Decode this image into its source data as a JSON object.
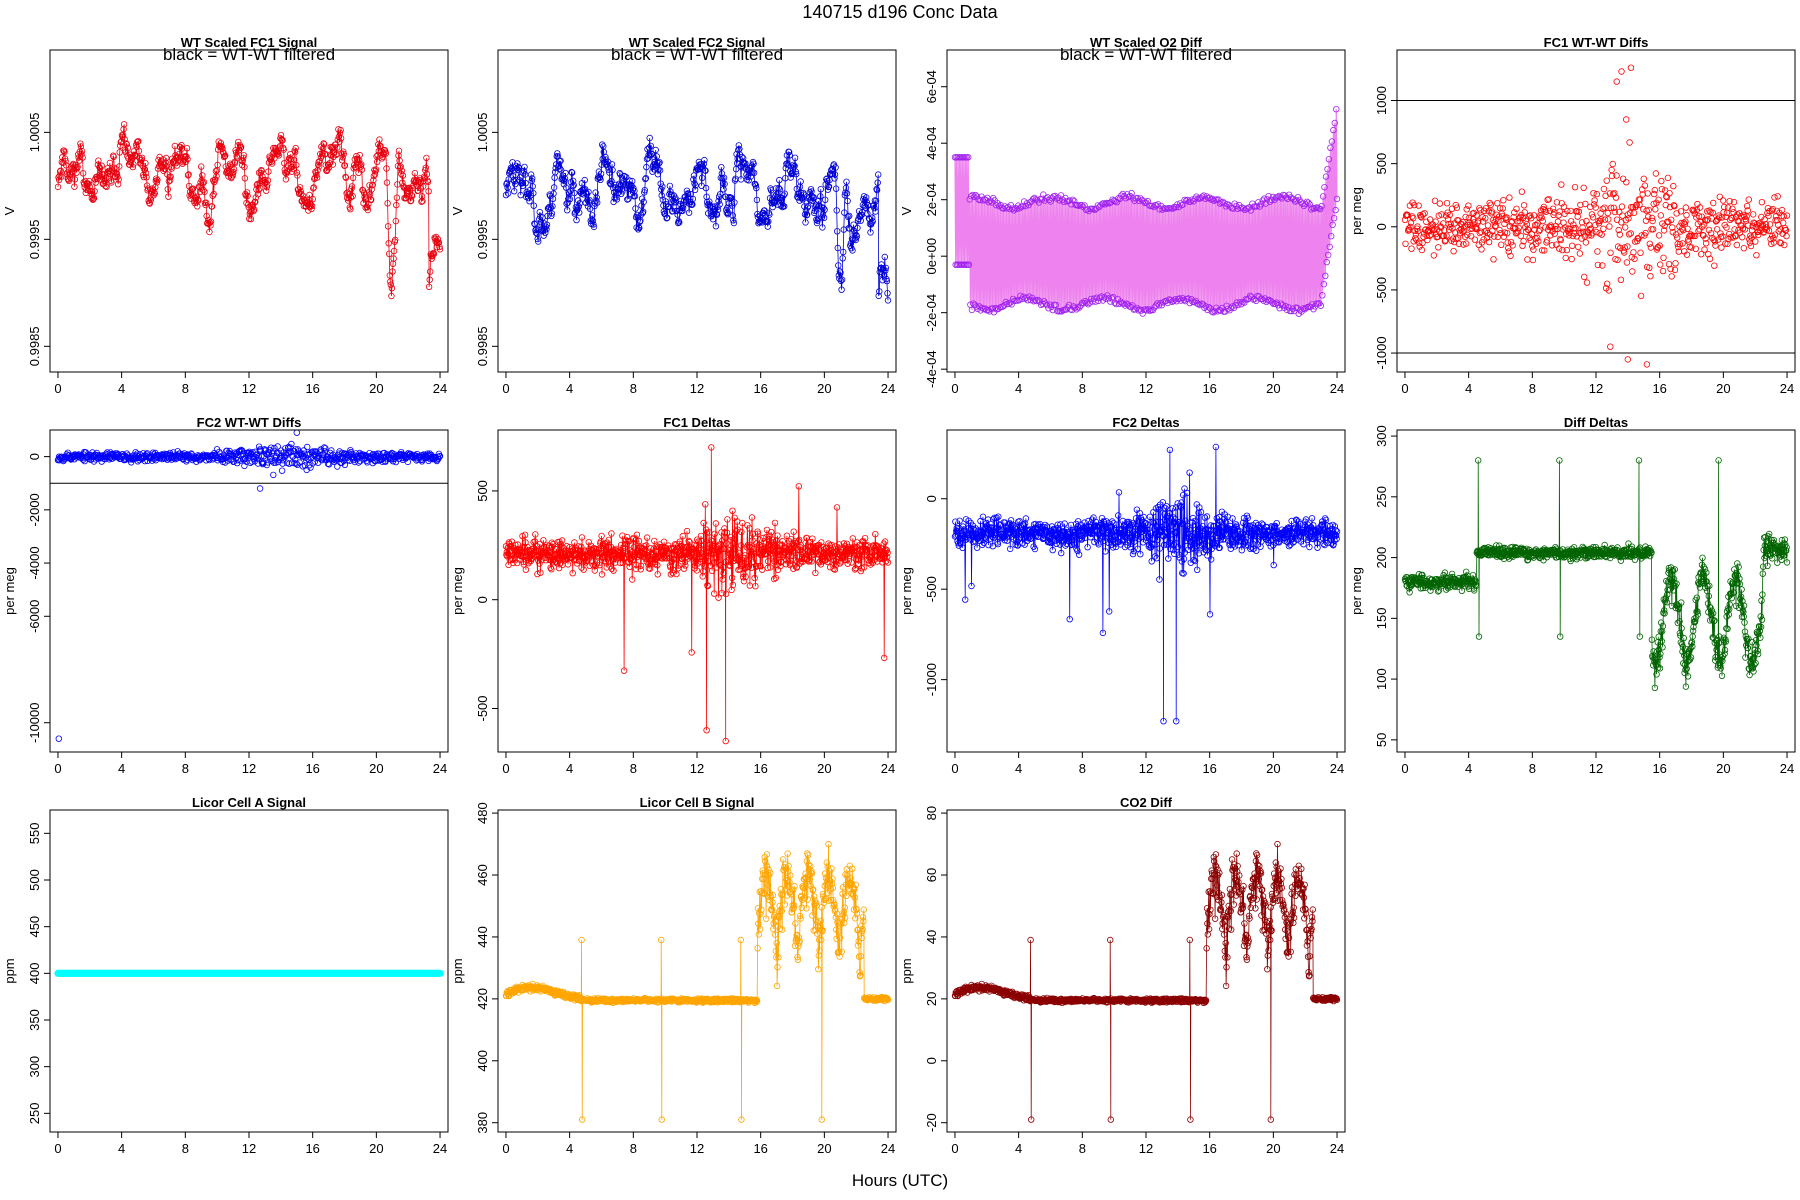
{
  "page": {
    "title": "140715    d196    Conc Data",
    "x_caption": "Hours (UTC)"
  },
  "chart_data": [
    {
      "id": "p1",
      "type": "scatter",
      "title": "WT Scaled FC1 Signal",
      "note": "black = WT-WT filtered",
      "ylabel": "V",
      "xlim": [
        -0.5,
        24.5
      ],
      "ylim": [
        0.99826,
        1.00127
      ],
      "xticks": [
        0,
        4,
        8,
        12,
        16,
        20,
        24
      ],
      "yticks": [
        0.9985,
        0.9995,
        1.0005
      ],
      "ytick_labels": [
        "0.9985",
        "0.9995",
        "1.0005"
      ],
      "color": "#e8000f",
      "series": [
        {
          "gen": "volt1",
          "base": 1.0001,
          "amp": 0.00036,
          "seed": 11
        }
      ]
    },
    {
      "id": "p2",
      "type": "scatter",
      "title": "WT Scaled FC2 Signal",
      "note": "black = WT-WT filtered",
      "ylabel": "V",
      "xlim": [
        -0.5,
        24.5
      ],
      "ylim": [
        0.99826,
        1.00127
      ],
      "xticks": [
        0,
        4,
        8,
        12,
        16,
        20,
        24
      ],
      "yticks": [
        0.9985,
        0.9995,
        1.0005
      ],
      "ytick_labels": [
        "0.9985",
        "0.9995",
        "1.0005"
      ],
      "color": "#0000d6",
      "series": [
        {
          "gen": "volt2",
          "base": 0.99995,
          "amp": 0.00038,
          "seed": 23
        }
      ]
    },
    {
      "id": "p3",
      "type": "scatter",
      "title": "WT Scaled O2 Diff",
      "note": "black = WT-WT filtered",
      "ylabel": "V",
      "xlim": [
        -0.5,
        24.5
      ],
      "ylim": [
        -0.00041,
        0.00073
      ],
      "xticks": [
        0,
        4,
        8,
        12,
        16,
        20,
        24
      ],
      "yticks": [
        -0.0004,
        -0.0002,
        0,
        0.0002,
        0.0004,
        0.0006
      ],
      "ytick_labels": [
        "-4e-04",
        "-2e-04",
        "0e+00",
        "2e-04",
        "4e-04",
        "6e-04"
      ],
      "color": "#a020f0",
      "series": [
        {
          "gen": "o2",
          "seed": 37
        }
      ]
    },
    {
      "id": "p4",
      "type": "scatter",
      "title": "FC1 WT-WT Diffs",
      "ylabel": "per meg",
      "xlim": [
        -0.5,
        24.5
      ],
      "ylim": [
        -1150,
        1400
      ],
      "xticks": [
        0,
        4,
        8,
        12,
        16,
        20,
        24
      ],
      "yticks": [
        -1000,
        -500,
        0,
        500,
        1000
      ],
      "ytick_labels": [
        "-1000",
        "-500",
        "0",
        "500",
        "1000"
      ],
      "hlines": [
        1000,
        -1000
      ],
      "color": "#ff0000",
      "series": [
        {
          "gen": "wtdiff",
          "seed": 41,
          "spread": 140
        }
      ]
    },
    {
      "id": "p5",
      "type": "scatter",
      "title": "FC2 WT-WT Diffs",
      "ylabel": "per meg",
      "xlim": [
        -0.5,
        24.5
      ],
      "ylim": [
        -11100,
        1000
      ],
      "xticks": [
        0,
        4,
        8,
        12,
        16,
        20,
        24
      ],
      "yticks": [
        -10000,
        -6000,
        -4000,
        -2000,
        0
      ],
      "ytick_labels": [
        "-10000",
        "-6000",
        "-4000",
        "-2000",
        "0"
      ],
      "hlines": [
        1000,
        -1000
      ],
      "color": "#0000ff",
      "series": [
        {
          "gen": "wtdiff2",
          "seed": 53,
          "spread": 110
        }
      ]
    },
    {
      "id": "p6",
      "type": "line",
      "title": "FC1 Deltas",
      "ylabel": "per meg",
      "xlim": [
        -0.5,
        24.5
      ],
      "ylim": [
        -700,
        780
      ],
      "xticks": [
        0,
        4,
        8,
        12,
        16,
        20,
        24
      ],
      "yticks": [
        -500,
        0,
        500
      ],
      "ytick_labels": [
        "-500",
        "0",
        "500"
      ],
      "color": "#ff0000",
      "series": [
        {
          "gen": "delta",
          "base": 210,
          "amp": 70,
          "seed": 61
        }
      ]
    },
    {
      "id": "p7",
      "type": "line",
      "title": "FC2 Deltas",
      "ylabel": "per meg",
      "xlim": [
        -0.5,
        24.5
      ],
      "ylim": [
        -1400,
        380
      ],
      "xticks": [
        0,
        4,
        8,
        12,
        16,
        20,
        24
      ],
      "yticks": [
        -1000,
        -500,
        0
      ],
      "ytick_labels": [
        "-1000",
        "-500",
        "0"
      ],
      "color": "#0000ff",
      "series": [
        {
          "gen": "delta2",
          "base": -190,
          "amp": 75,
          "seed": 71
        }
      ]
    },
    {
      "id": "p8",
      "type": "line",
      "title": "Diff Deltas",
      "ylabel": "per meg",
      "xlim": [
        -0.5,
        24.5
      ],
      "ylim": [
        40,
        305
      ],
      "xticks": [
        0,
        4,
        8,
        12,
        16,
        20,
        24
      ],
      "yticks": [
        50,
        100,
        150,
        200,
        250,
        300
      ],
      "ytick_labels": [
        "50",
        "100",
        "150",
        "200",
        "250",
        "300"
      ],
      "color": "#006400",
      "series": [
        {
          "gen": "ddelta",
          "seed": 83
        }
      ]
    },
    {
      "id": "p9",
      "type": "scatter",
      "title": "Licor Cell A Signal",
      "ylabel": "ppm",
      "xlim": [
        -0.5,
        24.5
      ],
      "ylim": [
        230,
        575
      ],
      "xticks": [
        0,
        4,
        8,
        12,
        16,
        20,
        24
      ],
      "yticks": [
        250,
        300,
        350,
        400,
        450,
        500,
        550
      ],
      "ytick_labels": [
        "250",
        "300",
        "350",
        "400",
        "450",
        "500",
        "550"
      ],
      "color": "#00ffff",
      "series": [
        {
          "gen": "flat",
          "value": 400
        }
      ]
    },
    {
      "id": "p10",
      "type": "line",
      "title": "Licor Cell B Signal",
      "ylabel": "ppm",
      "xlim": [
        -0.5,
        24.5
      ],
      "ylim": [
        377,
        481
      ],
      "xticks": [
        0,
        4,
        8,
        12,
        16,
        20,
        24
      ],
      "yticks": [
        380,
        400,
        420,
        440,
        460,
        480
      ],
      "ytick_labels": [
        "380",
        "400",
        "420",
        "440",
        "460",
        "480"
      ],
      "color": "#ffa500",
      "series": [
        {
          "gen": "co2",
          "offset": 400,
          "seed": 97
        }
      ]
    },
    {
      "id": "p11",
      "type": "line",
      "title": "CO2 Diff",
      "ylabel": "ppm",
      "xlim": [
        -0.5,
        24.5
      ],
      "ylim": [
        -23,
        81
      ],
      "xticks": [
        0,
        4,
        8,
        12,
        16,
        20,
        24
      ],
      "yticks": [
        -20,
        0,
        20,
        40,
        60,
        80
      ],
      "ytick_labels": [
        "-20",
        "0",
        "20",
        "40",
        "60",
        "80"
      ],
      "color": "#8b0000",
      "series": [
        {
          "gen": "co2",
          "offset": 0,
          "seed": 97
        }
      ]
    }
  ]
}
